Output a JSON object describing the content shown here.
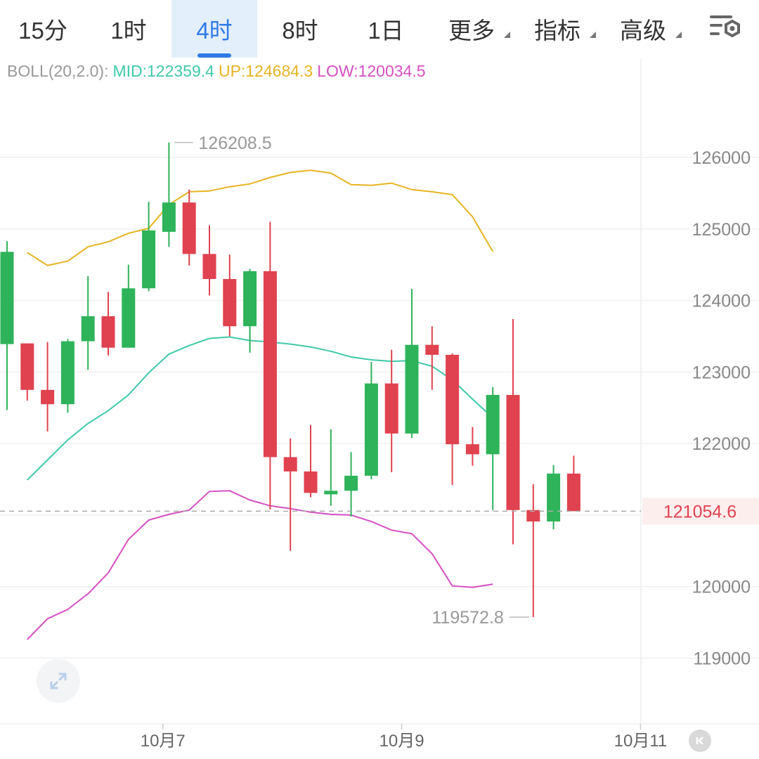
{
  "tabs": [
    {
      "label": "15分",
      "active": false,
      "dropdown": false
    },
    {
      "label": "1时",
      "active": false,
      "dropdown": false
    },
    {
      "label": "4时",
      "active": true,
      "dropdown": false
    },
    {
      "label": "8时",
      "active": false,
      "dropdown": false
    },
    {
      "label": "1日",
      "active": false,
      "dropdown": false
    },
    {
      "label": "更多",
      "active": false,
      "dropdown": true
    },
    {
      "label": "指标",
      "active": false,
      "dropdown": true
    },
    {
      "label": "高级",
      "active": false,
      "dropdown": true
    }
  ],
  "settings_icon": "chart-settings-icon",
  "legend": {
    "name": "BOLL(20,2.0):",
    "mid": "MID:122359.4",
    "up": "UP:124684.3",
    "low": "LOW:120034.5"
  },
  "colors": {
    "up_candle": "#2eb35a",
    "down_candle": "#e0424f",
    "mid_line": "#3fc9a8",
    "up_line": "#e6b422",
    "low_line": "#d64fc2",
    "active_tab": "#2f7be6",
    "last_price": "#e0424f"
  },
  "chart_data": {
    "type": "candlestick",
    "indicator": "BOLL(20,2.0)",
    "y_ticks": [
      126000,
      125000,
      124000,
      123000,
      122000,
      121000,
      120000,
      119000
    ],
    "y_tick_labels": [
      "126000",
      "125000",
      "124000",
      "123000",
      "122000",
      "",
      "120000",
      "119000"
    ],
    "x_labels": [
      "10月7",
      "10月9",
      "10月11"
    ],
    "x_label_index": [
      7.7,
      19.5,
      31.3
    ],
    "last_price": 121054.6,
    "last_price_label": "121054.6",
    "high_marker": {
      "index": 8,
      "value": 126208.5,
      "label": "126208.5"
    },
    "low_marker": {
      "index": 26,
      "value": 119572.8,
      "label": "119572.8"
    },
    "candles": [
      {
        "o": 123390,
        "h": 124830,
        "c": 124680,
        "l": 122470
      },
      {
        "o": 123400,
        "h": 123400,
        "c": 122750,
        "l": 122600
      },
      {
        "o": 122750,
        "h": 123420,
        "c": 122550,
        "l": 122170
      },
      {
        "o": 122550,
        "h": 123460,
        "c": 123430,
        "l": 122430
      },
      {
        "o": 123430,
        "h": 124340,
        "c": 123780,
        "l": 123030
      },
      {
        "o": 123780,
        "h": 124120,
        "c": 123340,
        "l": 123230
      },
      {
        "o": 123340,
        "h": 124500,
        "c": 124170,
        "l": 123340
      },
      {
        "o": 124170,
        "h": 125380,
        "c": 124980,
        "l": 124130
      },
      {
        "o": 124960,
        "h": 126208.5,
        "c": 125370,
        "l": 124750
      },
      {
        "o": 125370,
        "h": 125550,
        "c": 124650,
        "l": 124490
      },
      {
        "o": 124650,
        "h": 125050,
        "c": 124300,
        "l": 124070
      },
      {
        "o": 124300,
        "h": 124640,
        "c": 123640,
        "l": 123500
      },
      {
        "o": 123640,
        "h": 124440,
        "c": 124410,
        "l": 123270
      },
      {
        "o": 124410,
        "h": 125100,
        "c": 121810,
        "l": 121080
      },
      {
        "o": 121810,
        "h": 122070,
        "c": 121610,
        "l": 120500
      },
      {
        "o": 121610,
        "h": 122260,
        "c": 121310,
        "l": 121250
      },
      {
        "o": 121290,
        "h": 122200,
        "c": 121340,
        "l": 121130
      },
      {
        "o": 121340,
        "h": 121880,
        "c": 121550,
        "l": 120980
      },
      {
        "o": 121550,
        "h": 123140,
        "c": 122840,
        "l": 121500
      },
      {
        "o": 122840,
        "h": 123310,
        "c": 122140,
        "l": 121600
      },
      {
        "o": 122140,
        "h": 124160,
        "c": 123380,
        "l": 122080
      },
      {
        "o": 123380,
        "h": 123640,
        "c": 123240,
        "l": 122750
      },
      {
        "o": 123240,
        "h": 123260,
        "c": 121990,
        "l": 121420
      },
      {
        "o": 121990,
        "h": 122230,
        "c": 121850,
        "l": 121690
      },
      {
        "o": 121850,
        "h": 122790,
        "c": 122680,
        "l": 121070
      },
      {
        "o": 122680,
        "h": 123740,
        "c": 121070,
        "l": 120590
      },
      {
        "o": 121070,
        "h": 121430,
        "c": 120910,
        "l": 119572.8
      },
      {
        "o": 120910,
        "h": 121700,
        "c": 121580,
        "l": 120800
      },
      {
        "o": 121580,
        "h": 121830,
        "c": 121054.6,
        "l": 121054.6
      }
    ],
    "series": [
      {
        "name": "MID",
        "values": [
          121490,
          121770,
          122050,
          122280,
          122460,
          122680,
          122990,
          123250,
          123370,
          123470,
          123490,
          123440,
          123420,
          123390,
          123350,
          123290,
          123210,
          123170,
          123150,
          123160,
          123080,
          122890,
          122620,
          122360
        ]
      },
      {
        "name": "UP",
        "values": [
          124670,
          124490,
          124550,
          124750,
          124820,
          124940,
          125010,
          125340,
          125520,
          125530,
          125590,
          125630,
          125720,
          125790,
          125820,
          125780,
          125620,
          125610,
          125640,
          125550,
          125520,
          125480,
          125170,
          124684.3
        ]
      },
      {
        "name": "LOW",
        "values": [
          119260,
          119550,
          119680,
          119900,
          120190,
          120660,
          120930,
          121010,
          121070,
          121330,
          121340,
          121210,
          121130,
          121090,
          121040,
          121010,
          121000,
          120910,
          120790,
          120740,
          120460,
          120010,
          119990,
          120034.5
        ]
      }
    ],
    "series_start_index": 1,
    "grid": true,
    "legend_position": "top-left"
  }
}
